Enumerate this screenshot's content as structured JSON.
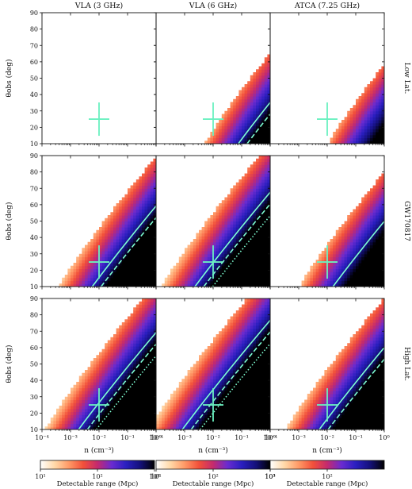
{
  "chart_data": {
    "type": "heatmap",
    "columns": [
      "VLA (3 GHz)",
      "VLA (6 GHz)",
      "ATCA (7.25 GHz)"
    ],
    "rows": [
      "Low Lat.",
      "GW170817",
      "High Lat."
    ],
    "xlabel": "n (cm⁻³)",
    "ylabel": "θobs (deg)",
    "x_scale": "log",
    "xlim": [
      0.0001,
      1
    ],
    "ylim": [
      10,
      90
    ],
    "x_ticks": [
      "10⁻⁴",
      "10⁻³",
      "10⁻²",
      "10⁻¹",
      "10⁰"
    ],
    "y_ticks": [
      10,
      20,
      30,
      40,
      50,
      60,
      70,
      80,
      90
    ],
    "marker": {
      "n": 0.01,
      "theta_obs": 25
    },
    "contour_colors": {
      "solid": "#7fffd4",
      "marker": "#6af0c0"
    },
    "colormap": [
      "#ffffff",
      "#ffd9a8",
      "#ff9966",
      "#f2503a",
      "#c42a6e",
      "#6a2bd0",
      "#2a1fc0",
      "#14107a",
      "#000000"
    ],
    "panels": [
      {
        "row": 0,
        "col": 0,
        "offset": null,
        "cmax": 1000,
        "contours": 0
      },
      {
        "row": 0,
        "col": 1,
        "offset": 1.55,
        "cmax": 1000,
        "contours": 2
      },
      {
        "row": 0,
        "col": 2,
        "offset": 1.95,
        "cmax": 1000,
        "contours": 0
      },
      {
        "row": 1,
        "col": 0,
        "offset": 0.15,
        "cmax": 1000,
        "contours": 2
      },
      {
        "row": 1,
        "col": 1,
        "offset": -0.35,
        "cmax": 1000,
        "contours": 3
      },
      {
        "row": 1,
        "col": 2,
        "offset": 0.7,
        "cmax": 1000,
        "contours": 1
      },
      {
        "row": 2,
        "col": 0,
        "offset": -0.45,
        "cmax": 1000,
        "contours": 3
      },
      {
        "row": 2,
        "col": 1,
        "offset": -0.9,
        "cmax": 1000,
        "contours": 3
      },
      {
        "row": 2,
        "col": 2,
        "offset": 0.1,
        "cmax": 1000,
        "contours": 2
      }
    ],
    "colorbars": [
      {
        "label": "Detectable range (Mpc)",
        "range": [
          10,
          1000
        ],
        "ticks": [
          "10¹",
          "10²",
          "10³"
        ]
      },
      {
        "label": "Detectable range (Mpc)",
        "range": [
          10,
          1000
        ],
        "ticks": [
          "10¹",
          "10²",
          "10³"
        ]
      },
      {
        "label": "Detectable range (Mpc)",
        "range": [
          10,
          1000
        ],
        "ticks": [
          "10¹",
          "10²"
        ]
      }
    ]
  }
}
